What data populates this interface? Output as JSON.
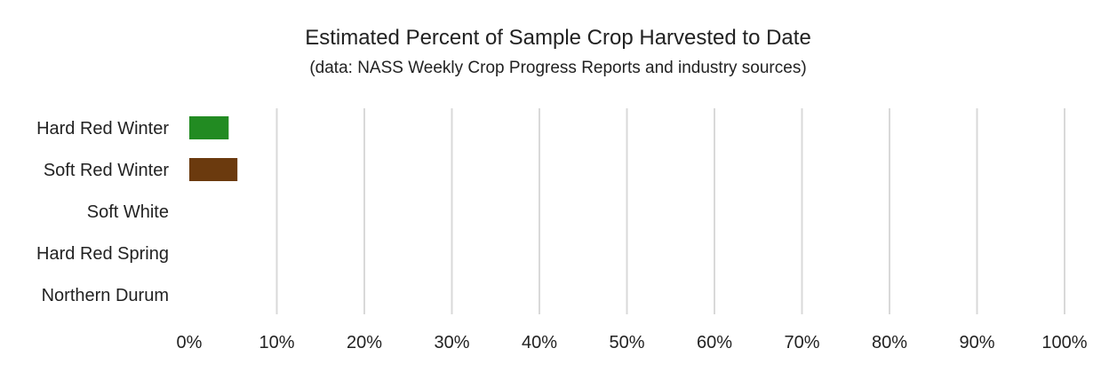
{
  "chart_data": {
    "type": "bar",
    "orientation": "horizontal",
    "title": "Estimated Percent of Sample Crop Harvested to Date",
    "subtitle": "(data: NASS Weekly Crop Progress Reports and industry sources)",
    "categories": [
      "Hard Red Winter",
      "Soft Red Winter",
      "Soft White",
      "Hard Red Spring",
      "Northern Durum"
    ],
    "values": [
      4.5,
      5.5,
      0,
      0,
      0
    ],
    "bar_colors": [
      "#228B22",
      "#6B3A0E",
      "#228B22",
      "#228B22",
      "#228B22"
    ],
    "xlim": [
      0,
      100
    ],
    "x_ticks": [
      0,
      10,
      20,
      30,
      40,
      50,
      60,
      70,
      80,
      90,
      100
    ],
    "x_tick_labels": [
      "0%",
      "10%",
      "20%",
      "30%",
      "40%",
      "50%",
      "60%",
      "70%",
      "80%",
      "90%",
      "100%"
    ],
    "grid": true,
    "legend": "none"
  }
}
